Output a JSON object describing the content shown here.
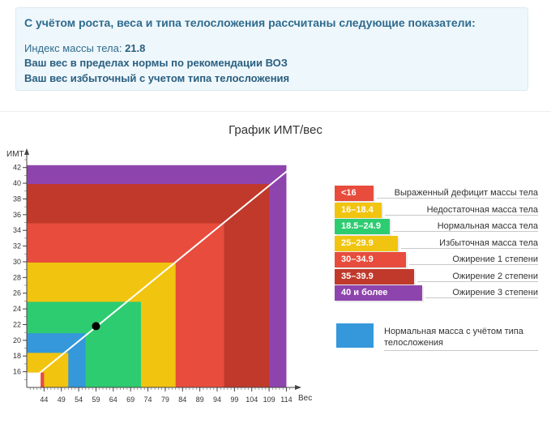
{
  "result": {
    "title": "С учётом роста, веса и типа телосложения рассчитаны следующие показатели:",
    "bmi_label": "Индекс массы тела:",
    "bmi_value": "21.8",
    "line_norm": "Ваш вес в пределах нормы по рекомендации ВОЗ",
    "line_excess": "Ваш вес избыточный с учетом типа телосложения"
  },
  "chart_data": {
    "type": "area",
    "title": "График ИМТ/вес",
    "xlabel": "Вес",
    "ylabel": "ИМТ",
    "x_ticks": [
      "44",
      "49",
      "54",
      "59",
      "64",
      "69",
      "74",
      "79",
      "84",
      "89",
      "94",
      "99",
      "104",
      "109",
      "114"
    ],
    "y_ticks": [
      "16",
      "18",
      "20",
      "22",
      "24",
      "26",
      "28",
      "30",
      "32",
      "34",
      "36",
      "38",
      "40",
      "42"
    ],
    "xlim": [
      39,
      116
    ],
    "ylim": [
      14,
      43
    ],
    "bmi_line": [
      [
        39,
        14.5
      ],
      [
        116,
        42.2
      ]
    ],
    "zones": [
      {
        "label": "40 и более",
        "color": "#8e44ad",
        "bmi_max": 42.3,
        "weight_max": 114
      },
      {
        "label": "35–39.9",
        "color": "#c0392b",
        "bmi_max": 39.9,
        "weight_max": 109
      },
      {
        "label": "30–34.9",
        "color": "#e74c3c",
        "bmi_max": 34.9,
        "weight_max": 96
      },
      {
        "label": "25–29.9",
        "color": "#f1c40f",
        "bmi_max": 29.9,
        "weight_max": 82
      },
      {
        "label": "18.5–24.9",
        "color": "#2ecc71",
        "bmi_max": 24.9,
        "weight_max": 72
      },
      {
        "label": "Нормальная масса с учётом типа телосложения",
        "color": "#3498db",
        "bmi_max": 20.9,
        "weight_max": 56
      },
      {
        "label": "16–18.4",
        "color": "#f1c40f",
        "bmi_max": 18.4,
        "weight_max": 51
      },
      {
        "label": "<16",
        "color": "#e74c3c",
        "bmi_max": 15.9,
        "weight_max": 44
      },
      {
        "label": "",
        "color": "#ffffff",
        "bmi_max": 15.9,
        "weight_max": 43
      }
    ],
    "point": {
      "x": 59,
      "y": 21.8
    },
    "legend": [
      {
        "badge": "<16",
        "label": "Выраженный дефицит массы тела",
        "color": "#e74c3c"
      },
      {
        "badge": "16–18.4",
        "label": "Недостаточная масса тела",
        "color": "#f1c40f"
      },
      {
        "badge": "18.5–24.9",
        "label": "Нормальная масса тела",
        "color": "#2ecc71"
      },
      {
        "badge": "25–29.9",
        "label": "Избыточная масса тела",
        "color": "#f1c40f"
      },
      {
        "badge": "30–34.9",
        "label": "Ожирение 1 степени",
        "color": "#e74c3c"
      },
      {
        "badge": "35–39.9",
        "label": "Ожирение 2 степени",
        "color": "#c0392b"
      },
      {
        "badge": "40 и более",
        "label": "Ожирение 3 степени",
        "color": "#8e44ad"
      }
    ],
    "norm_legend": {
      "label": "Нормальная масса с учётом типа телосложения",
      "color": "#3498db"
    }
  }
}
